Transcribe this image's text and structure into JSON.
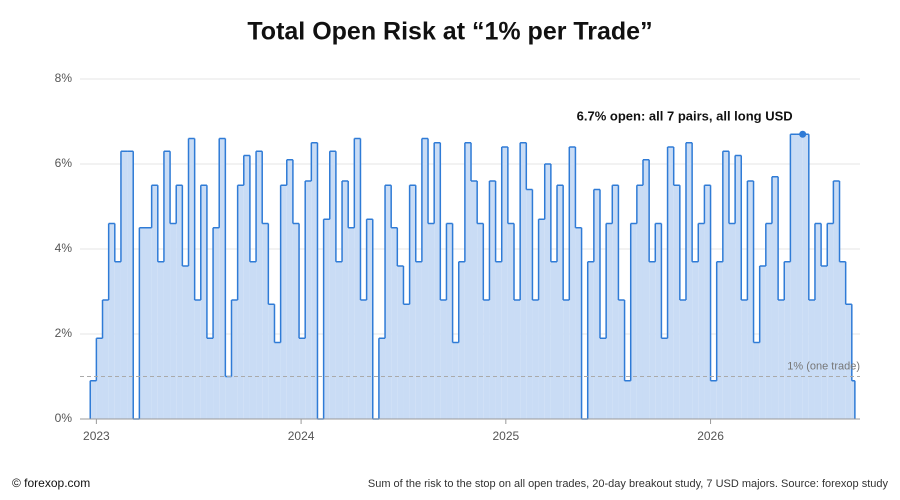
{
  "chart_data": {
    "type": "step-area",
    "title": "Total Open Risk at “1% per Trade”",
    "caption": "Sum of the risk to the stop on all open trades, 20-day breakout study, 7 USD majors. Source: forexop study",
    "credit": "© forexop.com",
    "color": "#2f7bd6",
    "fill_color": "#c9dcf5",
    "grid": true,
    "xlim": [
      2022.92,
      2026.73
    ],
    "xticks": [
      2023,
      2024,
      2025,
      2026
    ],
    "ylim": [
      0,
      8
    ],
    "yticks": [
      {
        "value": 0,
        "label": "0%"
      },
      {
        "value": 2,
        "label": "2%"
      },
      {
        "value": 4,
        "label": "4%"
      },
      {
        "value": 6,
        "label": "6%"
      },
      {
        "value": 8,
        "label": "8%"
      }
    ],
    "reference_line": {
      "value": 1,
      "label": "1% (one trade)"
    },
    "annotation": {
      "text": "6.7% open: all 7 pairs, all long USD",
      "x": 2026.45,
      "y": 6.7
    },
    "x": [
      2022.97,
      2023,
      2023.03,
      2023.06,
      2023.09,
      2023.12,
      2023.15,
      2023.18,
      2023.21,
      2023.24,
      2023.27,
      2023.3,
      2023.33,
      2023.36,
      2023.39,
      2023.42,
      2023.45,
      2023.48,
      2023.51,
      2023.54,
      2023.57,
      2023.6,
      2023.63,
      2023.66,
      2023.69,
      2023.72,
      2023.75,
      2023.78,
      2023.81,
      2023.84,
      2023.87,
      2023.9,
      2023.93,
      2023.96,
      2023.99,
      2024.02,
      2024.05,
      2024.08,
      2024.11,
      2024.14,
      2024.17,
      2024.2,
      2024.23,
      2024.26,
      2024.29,
      2024.32,
      2024.35,
      2024.38,
      2024.41,
      2024.44,
      2024.47,
      2024.5,
      2024.53,
      2024.56,
      2024.59,
      2024.62,
      2024.65,
      2024.68,
      2024.71,
      2024.74,
      2024.77,
      2024.8,
      2024.83,
      2024.86,
      2024.89,
      2024.92,
      2024.95,
      2024.98,
      2025.01,
      2025.04,
      2025.07,
      2025.1,
      2025.13,
      2025.16,
      2025.19,
      2025.22,
      2025.25,
      2025.28,
      2025.31,
      2025.34,
      2025.37,
      2025.4,
      2025.43,
      2025.46,
      2025.49,
      2025.52,
      2025.55,
      2025.58,
      2025.61,
      2025.64,
      2025.67,
      2025.7,
      2025.73,
      2025.76,
      2025.79,
      2025.82,
      2025.85,
      2025.88,
      2025.91,
      2025.94,
      2025.97,
      2026,
      2026.03,
      2026.06,
      2026.09,
      2026.12,
      2026.15,
      2026.18,
      2026.21,
      2026.24,
      2026.27,
      2026.3,
      2026.33,
      2026.36,
      2026.39,
      2026.42,
      2026.45,
      2026.48,
      2026.51,
      2026.54,
      2026.57,
      2026.6,
      2026.63,
      2026.66,
      2026.69
    ],
    "values": [
      0.9,
      1.9,
      2.8,
      4.6,
      3.7,
      6.3,
      6.3,
      0,
      4.5,
      4.5,
      5.5,
      3.7,
      6.3,
      4.6,
      5.5,
      3.6,
      6.6,
      2.8,
      5.5,
      1.9,
      4.5,
      6.6,
      1,
      2.8,
      5.5,
      6.2,
      3.7,
      6.3,
      4.6,
      2.7,
      1.8,
      5.5,
      6.1,
      4.6,
      1.9,
      5.6,
      6.5,
      0,
      4.7,
      6.3,
      3.7,
      5.6,
      4.5,
      6.6,
      2.8,
      4.7,
      0,
      1.9,
      5.5,
      4.5,
      3.6,
      2.7,
      5.5,
      3.7,
      6.6,
      4.6,
      6.5,
      2.8,
      4.6,
      1.8,
      3.7,
      6.5,
      5.6,
      4.6,
      2.8,
      5.6,
      3.7,
      6.4,
      4.6,
      2.8,
      6.5,
      5.4,
      2.8,
      4.7,
      6.0,
      3.7,
      5.5,
      2.8,
      6.4,
      4.5,
      0,
      3.7,
      5.4,
      1.9,
      4.6,
      5.5,
      2.8,
      0.9,
      4.6,
      5.5,
      6.1,
      3.7,
      4.6,
      1.9,
      6.4,
      5.5,
      2.8,
      6.5,
      3.7,
      4.6,
      5.5,
      0.9,
      3.7,
      6.3,
      4.6,
      6.2,
      2.8,
      5.6,
      1.8,
      3.6,
      4.6,
      5.7,
      2.8,
      3.7,
      6.7,
      6.7,
      6.7,
      2.8,
      4.6,
      3.6,
      4.6,
      5.6,
      3.7,
      2.7,
      0.9
    ]
  }
}
